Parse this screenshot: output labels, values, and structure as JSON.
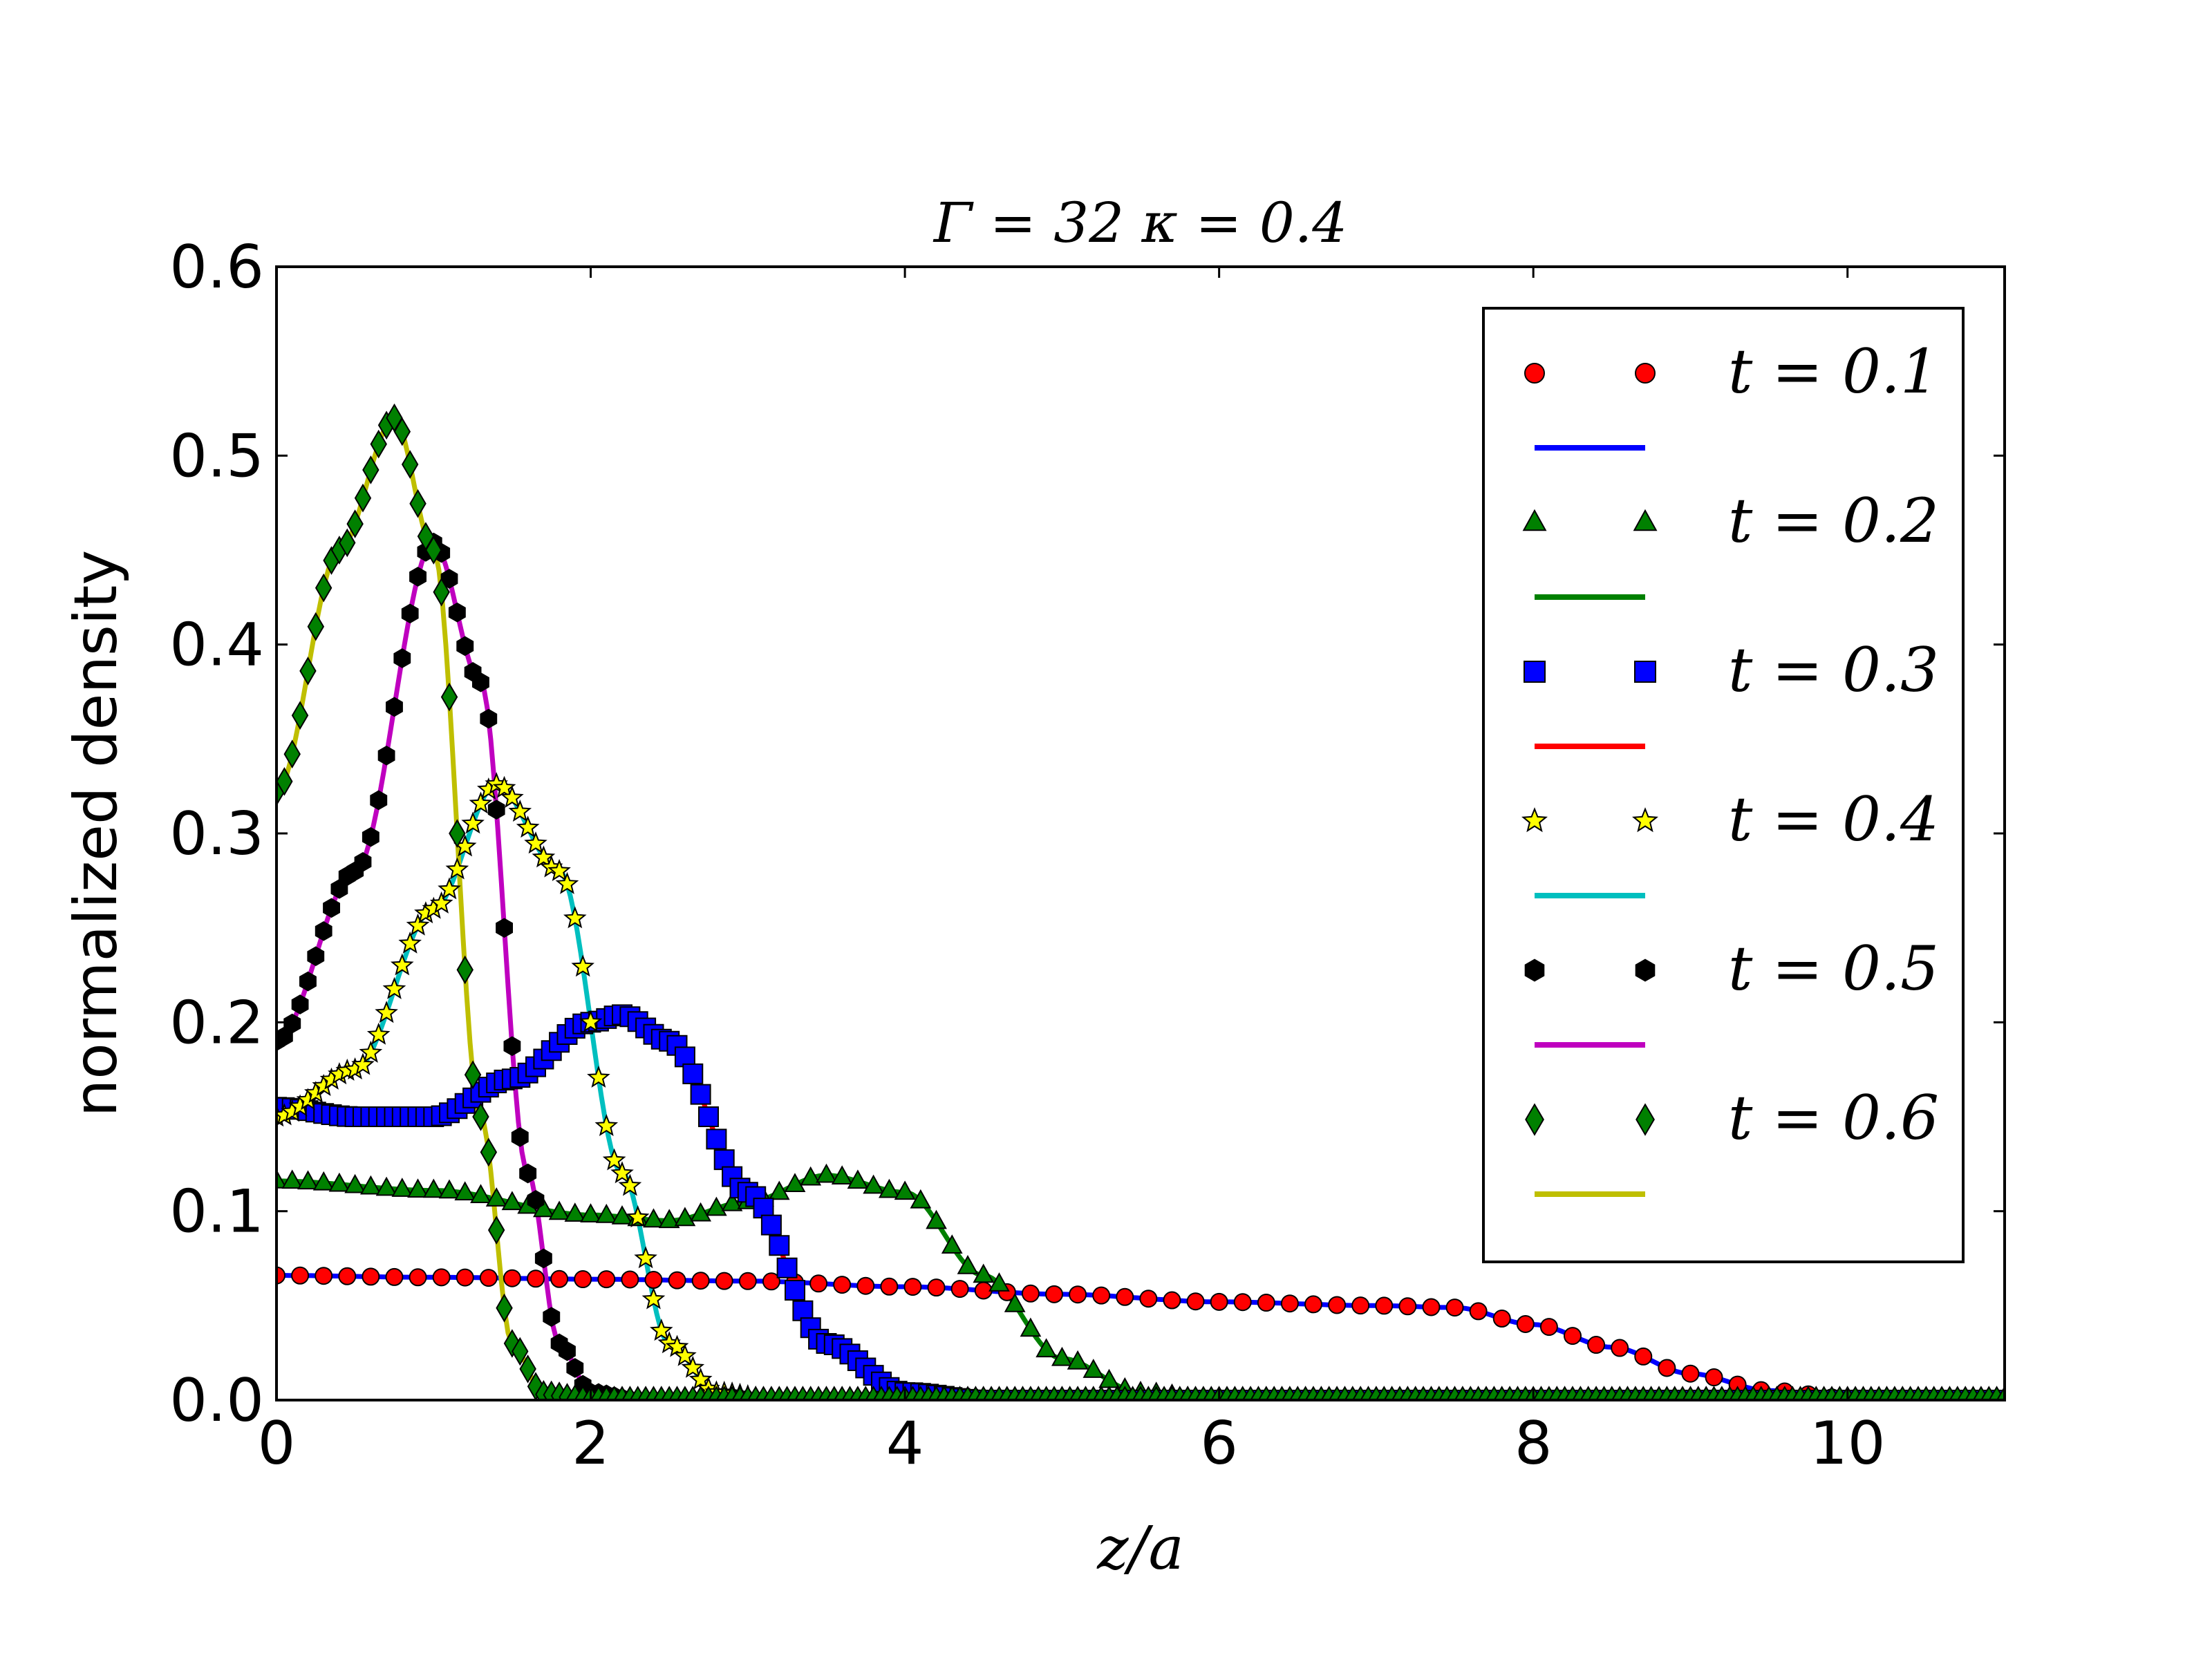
{
  "chart_data": {
    "type": "line",
    "title": "Γ = 32  κ = 0.4",
    "xlabel": "z/a",
    "ylabel": "normalized density",
    "xlim": [
      0,
      11
    ],
    "ylim": [
      0,
      0.6
    ],
    "x_ticks": [
      0,
      2,
      4,
      6,
      8,
      10
    ],
    "x_tick_labels": [
      "0",
      "2",
      "4",
      "6",
      "8",
      "10"
    ],
    "y_ticks": [
      0.0,
      0.1,
      0.2,
      0.3,
      0.4,
      0.5,
      0.6
    ],
    "y_tick_labels": [
      "0.0",
      "0.1",
      "0.2",
      "0.3",
      "0.4",
      "0.5",
      "0.6"
    ],
    "grid": false,
    "legend_position": "top-right",
    "series": [
      {
        "name": "t = 0.1",
        "time": 0.1,
        "marker": "circle",
        "marker_color": "#ff0000",
        "line_color": "#0000ff",
        "points": [
          [
            0,
            0.066
          ],
          [
            1,
            0.065
          ],
          [
            2,
            0.064
          ],
          [
            3,
            0.063
          ],
          [
            4,
            0.06
          ],
          [
            5,
            0.056
          ],
          [
            6,
            0.052
          ],
          [
            7,
            0.05
          ],
          [
            7.5,
            0.049
          ],
          [
            8,
            0.04
          ],
          [
            8.5,
            0.028
          ],
          [
            9,
            0.014
          ],
          [
            9.5,
            0.005
          ],
          [
            10,
            0.001
          ],
          [
            11,
            0.0
          ]
        ]
      },
      {
        "name": "t = 0.2",
        "time": 0.2,
        "marker": "triangle",
        "marker_color": "#008000",
        "line_color": "#008000",
        "points": [
          [
            0,
            0.116
          ],
          [
            1,
            0.111
          ],
          [
            2,
            0.098
          ],
          [
            2.5,
            0.095
          ],
          [
            3,
            0.105
          ],
          [
            3.5,
            0.119
          ],
          [
            4,
            0.11
          ],
          [
            4.5,
            0.066
          ],
          [
            5,
            0.022
          ],
          [
            5.5,
            0.004
          ],
          [
            6,
            0.0
          ],
          [
            11,
            0.0
          ]
        ]
      },
      {
        "name": "t = 0.3",
        "time": 0.3,
        "marker": "square",
        "marker_color": "#0000ff",
        "line_color": "#ff0000",
        "points": [
          [
            0,
            0.155
          ],
          [
            0.5,
            0.15
          ],
          [
            1,
            0.15
          ],
          [
            1.5,
            0.17
          ],
          [
            2,
            0.2
          ],
          [
            2.2,
            0.204
          ],
          [
            2.5,
            0.19
          ],
          [
            3,
            0.11
          ],
          [
            3.5,
            0.03
          ],
          [
            4,
            0.004
          ],
          [
            4.5,
            0.0
          ],
          [
            11,
            0.0
          ]
        ]
      },
      {
        "name": "t = 0.4",
        "time": 0.4,
        "marker": "star",
        "marker_color": "#ffff00",
        "line_color": "#00bfbf",
        "points": [
          [
            0,
            0.15
          ],
          [
            0.5,
            0.175
          ],
          [
            1,
            0.26
          ],
          [
            1.4,
            0.326
          ],
          [
            1.8,
            0.28
          ],
          [
            2.2,
            0.12
          ],
          [
            2.5,
            0.03
          ],
          [
            2.8,
            0.004
          ],
          [
            3.2,
            0.0
          ],
          [
            11,
            0.0
          ]
        ]
      },
      {
        "name": "t = 0.5",
        "time": 0.5,
        "marker": "hexagon",
        "marker_color": "#000000",
        "line_color": "#bf00bf",
        "points": [
          [
            0,
            0.19
          ],
          [
            0.5,
            0.28
          ],
          [
            1,
            0.454
          ],
          [
            1.3,
            0.38
          ],
          [
            1.6,
            0.12
          ],
          [
            1.8,
            0.03
          ],
          [
            2,
            0.004
          ],
          [
            2.3,
            0.0
          ],
          [
            11,
            0.0
          ]
        ]
      },
      {
        "name": "t = 0.6",
        "time": 0.6,
        "marker": "diamond",
        "marker_color": "#008000",
        "line_color": "#bfbf00",
        "points": [
          [
            0,
            0.322
          ],
          [
            0.4,
            0.45
          ],
          [
            0.75,
            0.52
          ],
          [
            1,
            0.45
          ],
          [
            1.3,
            0.15
          ],
          [
            1.5,
            0.03
          ],
          [
            1.7,
            0.003
          ],
          [
            2,
            0.0
          ],
          [
            11,
            0.0
          ]
        ]
      }
    ]
  }
}
